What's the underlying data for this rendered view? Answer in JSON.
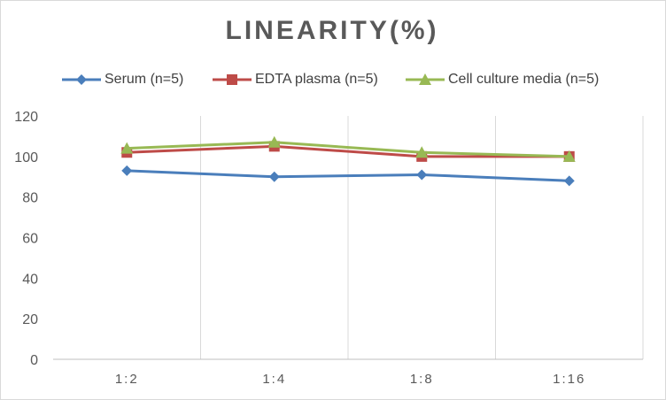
{
  "chart_data": {
    "type": "line",
    "title": "LINEARITY(%)",
    "categories": [
      "1:2",
      "1:4",
      "1:8",
      "1:16"
    ],
    "ylim": [
      0,
      120
    ],
    "yticks": [
      0,
      20,
      40,
      60,
      80,
      100,
      120
    ],
    "grid": "vertical",
    "legend_position": "top",
    "series": [
      {
        "name": "Serum (n=5)",
        "values": [
          93,
          90,
          91,
          88
        ],
        "color": "#4a7ebb",
        "marker": "diamond"
      },
      {
        "name": "EDTA plasma (n=5)",
        "values": [
          102,
          105,
          100,
          100
        ],
        "color": "#be4b48",
        "marker": "square"
      },
      {
        "name": "Cell culture media (n=5)",
        "values": [
          104,
          107,
          102,
          100
        ],
        "color": "#98b954",
        "marker": "triangle"
      }
    ]
  }
}
